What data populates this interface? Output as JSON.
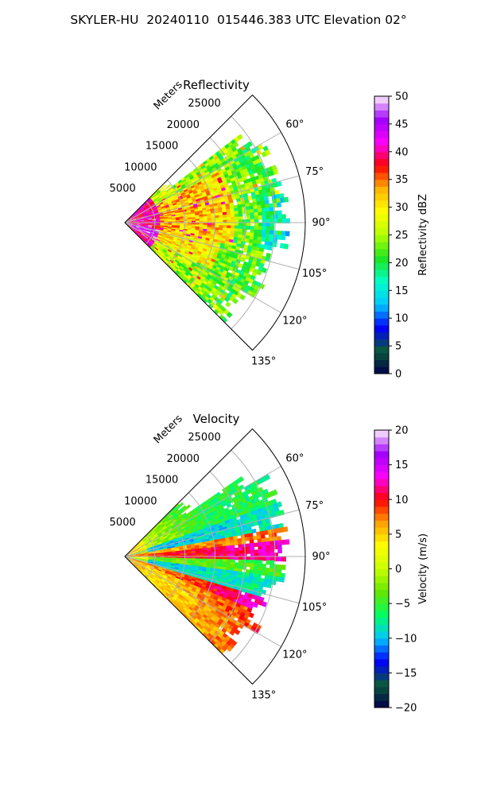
{
  "figure_title": "SKYLER-HU  20240110  015446.383 UTC Elevation 02°",
  "chart_data": [
    {
      "type": "heatmap",
      "projection": "polar-sector",
      "title": "Reflectivity",
      "radial_axis_label": "Meters",
      "radial_ticks": [
        "5000",
        "10000",
        "15000",
        "20000",
        "25000"
      ],
      "radial_tick_values": [
        5000,
        10000,
        15000,
        20000,
        25000
      ],
      "r_max": 30000,
      "azimuth_range_deg": [
        45,
        135
      ],
      "azimuth_ticks": [
        "60°",
        "75°",
        "90°",
        "105°",
        "120°",
        "135°"
      ],
      "azimuth_tick_values": [
        60,
        75,
        90,
        105,
        120,
        135
      ],
      "grid": true,
      "colorbar": {
        "label": "Reflectivity dBZ",
        "range": [
          0,
          50
        ],
        "ticks": [
          "0",
          "5",
          "10",
          "15",
          "20",
          "25",
          "30",
          "35",
          "40",
          "45",
          "50"
        ],
        "tick_values": [
          0,
          5,
          10,
          15,
          20,
          25,
          30,
          35,
          40,
          45,
          50
        ],
        "stops": [
          "#00004a",
          "#0a5a3a",
          "#0000ff",
          "#00c8ff",
          "#00ffc8",
          "#1ee61e",
          "#b4ff00",
          "#ffff00",
          "#ffb400",
          "#ff0000",
          "#ff00ff",
          "#a000ff",
          "#fff0ff"
        ]
      }
    },
    {
      "type": "heatmap",
      "projection": "polar-sector",
      "title": "Velocity",
      "radial_axis_label": "Meters",
      "radial_ticks": [
        "5000",
        "10000",
        "15000",
        "20000",
        "25000"
      ],
      "radial_tick_values": [
        5000,
        10000,
        15000,
        20000,
        25000
      ],
      "r_max": 30000,
      "azimuth_range_deg": [
        45,
        135
      ],
      "azimuth_ticks": [
        "60°",
        "75°",
        "90°",
        "105°",
        "120°",
        "135°"
      ],
      "azimuth_tick_values": [
        60,
        75,
        90,
        105,
        120,
        135
      ],
      "grid": true,
      "colorbar": {
        "label": "Velocity (m/s)",
        "range": [
          -20,
          20
        ],
        "ticks": [
          "−20",
          "−15",
          "−10",
          "−5",
          "0",
          "5",
          "10",
          "15",
          "20"
        ],
        "tick_values": [
          -20,
          -15,
          -10,
          -5,
          0,
          5,
          10,
          15,
          20
        ],
        "stops": [
          "#00004a",
          "#0a5a3a",
          "#0000ff",
          "#00c8ff",
          "#00ff64",
          "#64e600",
          "#c8ff00",
          "#ffff00",
          "#ffa000",
          "#ff0000",
          "#ff00ff",
          "#a000ff",
          "#fff0ff"
        ]
      }
    }
  ]
}
